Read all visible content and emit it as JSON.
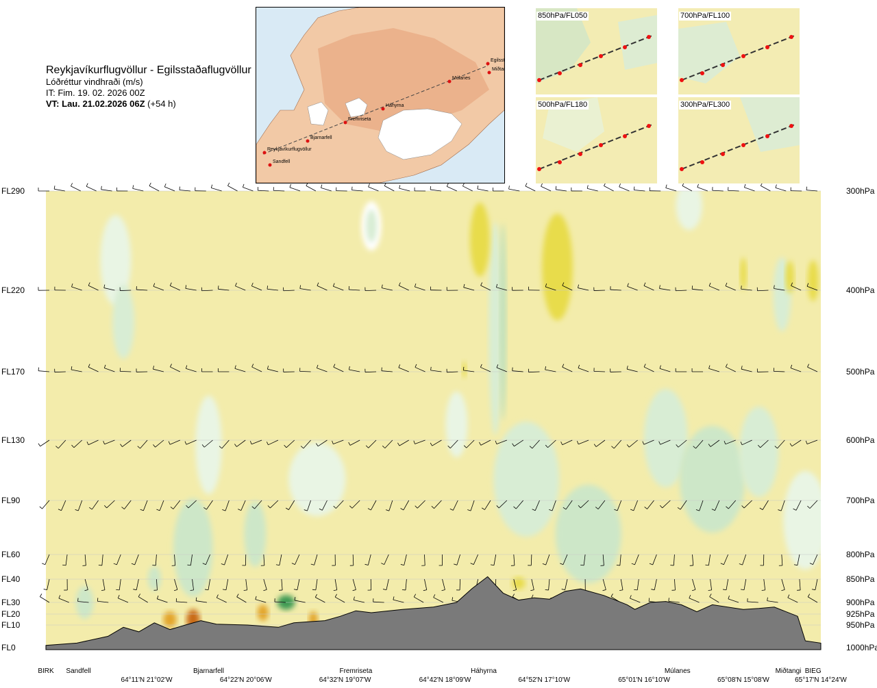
{
  "header": {
    "route": "Reykjavíkurflugvöllur - Egilsstaðaflugvöllur",
    "variable": "Lóðréttur vindhraði (m/s)",
    "issue_time": "IT: Fim. 19. 02. 2026 00Z",
    "valid_prefix": "VT:",
    "valid_time": "Lau. 21.02.2026 06Z",
    "lead": "(+54 h)"
  },
  "map": {
    "stations": [
      "Reykjavíkurflugvöllur",
      "Sandfell",
      "Bjarnarfell",
      "Fremriseta",
      "Háhyrna",
      "Múlanes",
      "Egilsst",
      "Miðtangi"
    ]
  },
  "insets": [
    {
      "label": "850hPa/FL050"
    },
    {
      "label": "700hPa/FL100"
    },
    {
      "label": "500hPa/FL180"
    },
    {
      "label": "300hPa/FL300"
    }
  ],
  "chart_data": {
    "type": "heatmap",
    "title": "Lóðréttur vindhraði (m/s)",
    "levels": [
      {
        "fl": "FL290",
        "hpa": "300hPa",
        "p": 300
      },
      {
        "fl": "FL220",
        "hpa": "400hPa",
        "p": 400
      },
      {
        "fl": "FL170",
        "hpa": "500hPa",
        "p": 500
      },
      {
        "fl": "FL130",
        "hpa": "600hPa",
        "p": 600
      },
      {
        "fl": "FL90",
        "hpa": "700hPa",
        "p": 700
      },
      {
        "fl": "FL60",
        "hpa": "800hPa",
        "p": 800
      },
      {
        "fl": "FL40",
        "hpa": "850hPa",
        "p": 850
      },
      {
        "fl": "FL30",
        "hpa": "900hPa",
        "p": 900
      },
      {
        "fl": "FL20",
        "hpa": "925hPa",
        "p": 925
      },
      {
        "fl": "FL10",
        "hpa": "950hPa",
        "p": 950
      },
      {
        "fl": "FL0",
        "hpa": "1000hPa",
        "p": 1000
      }
    ],
    "stations": [
      {
        "name": "BIRK",
        "pos": 0.0
      },
      {
        "name": "Sandfell",
        "pos": 0.042
      },
      {
        "name": "Bjarnarfell",
        "pos": 0.21
      },
      {
        "name": "Fremriseta",
        "pos": 0.4
      },
      {
        "name": "Háhyrna",
        "pos": 0.565
      },
      {
        "name": "Múlanes",
        "pos": 0.815
      },
      {
        "name": "Miðtangi",
        "pos": 0.958
      },
      {
        "name": "BIEG",
        "pos": 0.99
      }
    ],
    "coordinates": [
      {
        "label": "64°11'N 21°02'W",
        "pos": 0.13
      },
      {
        "label": "64°22'N 20°06'W",
        "pos": 0.258
      },
      {
        "label": "64°32'N 19°07'W",
        "pos": 0.386
      },
      {
        "label": "64°42'N 18°09'W",
        "pos": 0.515
      },
      {
        "label": "64°52'N 17°10'W",
        "pos": 0.643
      },
      {
        "label": "65°01'N 16°10'W",
        "pos": 0.772
      },
      {
        "label": "65°08'N 15°08'W",
        "pos": 0.9
      },
      {
        "label": "65°17'N 14°24'W",
        "pos": 1.0
      }
    ],
    "terrain_p": [
      [
        0.0,
        995
      ],
      [
        0.04,
        990
      ],
      [
        0.08,
        975
      ],
      [
        0.1,
        955
      ],
      [
        0.12,
        965
      ],
      [
        0.14,
        945
      ],
      [
        0.16,
        960
      ],
      [
        0.18,
        950
      ],
      [
        0.2,
        940
      ],
      [
        0.22,
        948
      ],
      [
        0.26,
        950
      ],
      [
        0.3,
        955
      ],
      [
        0.32,
        945
      ],
      [
        0.36,
        940
      ],
      [
        0.38,
        930
      ],
      [
        0.4,
        918
      ],
      [
        0.42,
        922
      ],
      [
        0.46,
        915
      ],
      [
        0.5,
        910
      ],
      [
        0.53,
        900
      ],
      [
        0.55,
        870
      ],
      [
        0.57,
        845
      ],
      [
        0.59,
        880
      ],
      [
        0.61,
        895
      ],
      [
        0.63,
        890
      ],
      [
        0.65,
        893
      ],
      [
        0.67,
        876
      ],
      [
        0.69,
        871
      ],
      [
        0.72,
        885
      ],
      [
        0.75,
        905
      ],
      [
        0.76,
        915
      ],
      [
        0.78,
        900
      ],
      [
        0.8,
        898
      ],
      [
        0.82,
        905
      ],
      [
        0.84,
        920
      ],
      [
        0.86,
        905
      ],
      [
        0.9,
        915
      ],
      [
        0.92,
        913
      ],
      [
        0.94,
        910
      ],
      [
        0.97,
        930
      ],
      [
        0.98,
        985
      ],
      [
        1.0,
        990
      ]
    ],
    "legend": "none"
  }
}
